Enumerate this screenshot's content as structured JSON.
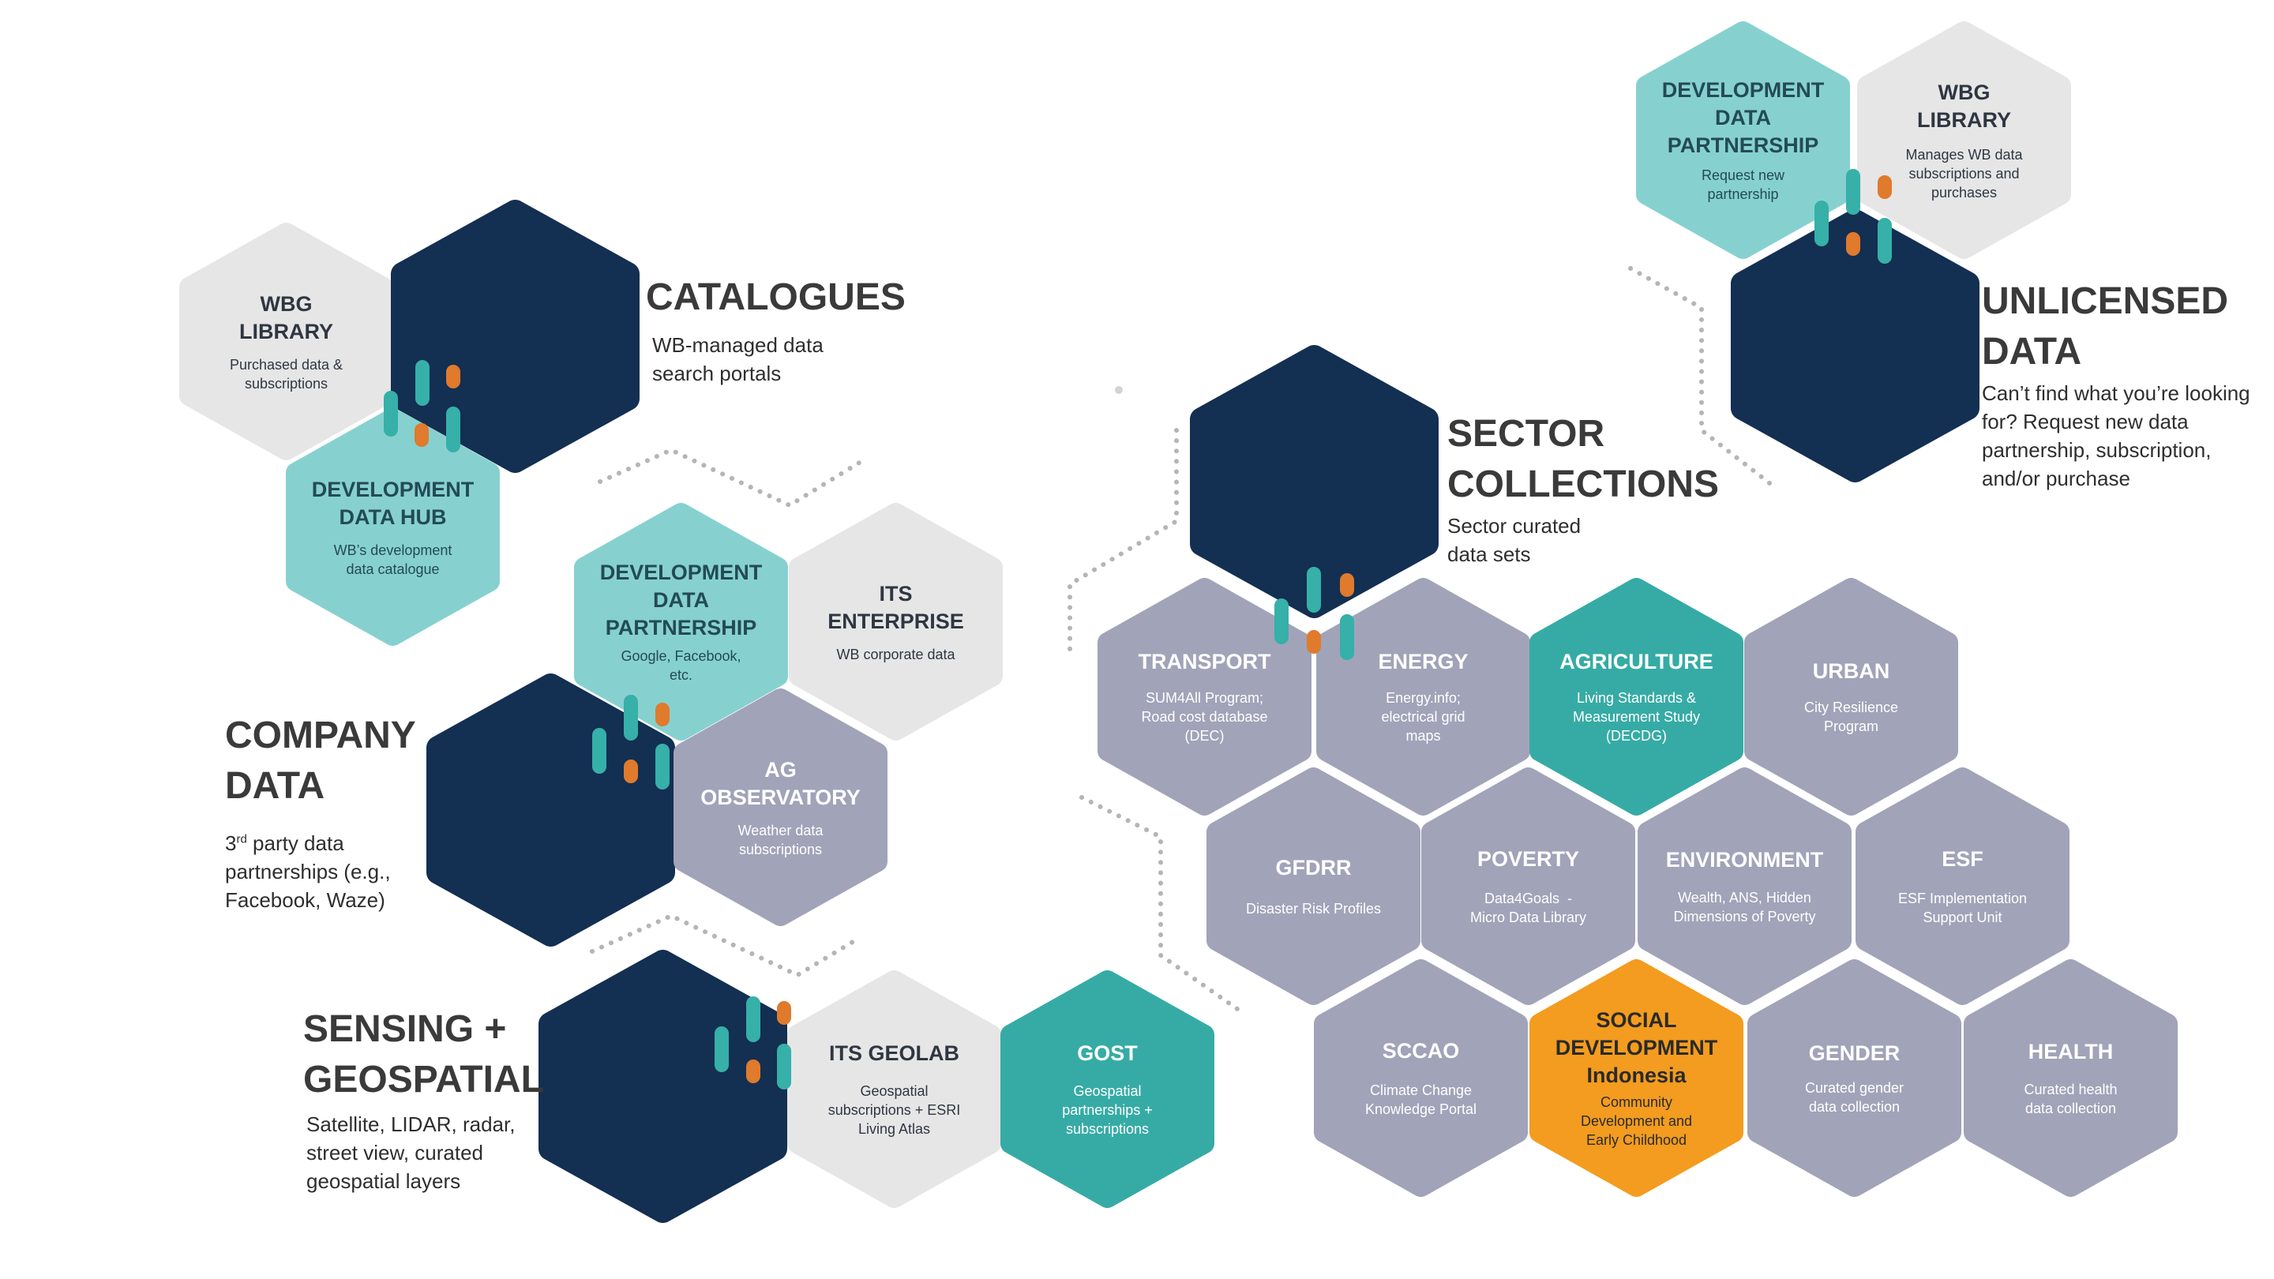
{
  "colors": {
    "navy": "#132f52",
    "grey": "#e6e6e6",
    "slate": "#a1a3b9",
    "teal": "#36aba5",
    "mint": "#86d1cf",
    "orange": "#f39c1f",
    "accent_teal": "#36b0a8",
    "accent_orange": "#e07a2c"
  },
  "sections": {
    "catalogues": {
      "title": "CATALOGUES",
      "subtitle_1": "WB-managed data",
      "subtitle_2": "search portals"
    },
    "unlicensed": {
      "title_1": "UNLICENSED",
      "title_2": "DATA",
      "subtitle_1": "Can’t find what you’re looking",
      "subtitle_2": "for? Request new data",
      "subtitle_3": "partnership, subscription,",
      "subtitle_4": "and/or purchase"
    },
    "sector": {
      "title_1": "SECTOR",
      "title_2": "COLLECTIONS",
      "subtitle_1": "Sector curated",
      "subtitle_2": "data sets"
    },
    "company": {
      "title_1": "COMPANY",
      "title_2": "DATA",
      "subtitle_num": "3",
      "subtitle_sup": "rd",
      "subtitle_1": " party data",
      "subtitle_2": "partnerships (e.g.,",
      "subtitle_3": "Facebook, Waze)"
    },
    "sensing": {
      "title_1": "SENSING +",
      "title_2": "GEOSPATIAL",
      "subtitle_1": "Satellite, LIDAR, radar,",
      "subtitle_2": "street view, curated",
      "subtitle_3": "geospatial layers"
    }
  },
  "hexes": {
    "wbg_library_cat": {
      "t1": "WBG LIBRARY",
      "d1": "Purchased data &",
      "d2": "subscriptions"
    },
    "dev_data_hub": {
      "t1": "DEVELOPMENT",
      "t2": "DATA HUB",
      "d1": "WB’s development",
      "d2": "data catalogue"
    },
    "ddp_company": {
      "t1": "DEVELOPMENT",
      "t2": "DATA",
      "t3": "PARTNERSHIP",
      "d1": "Google, Facebook,",
      "d2": "etc."
    },
    "its_enterprise": {
      "t1": "ITS",
      "t2": "ENTERPRISE",
      "d1": "WB corporate data"
    },
    "ag_observatory": {
      "t1": "AG",
      "t2": "OBSERVATORY",
      "d1": "Weather data",
      "d2": "subscriptions"
    },
    "its_geolab": {
      "t1": "ITS GEOLAB",
      "d1": "Geospatial",
      "d2": "subscriptions + ESRI",
      "d3": "Living Atlas"
    },
    "gost": {
      "t1": "GOST",
      "d1": "Geospatial",
      "d2": "partnerships +",
      "d3": "subscriptions"
    },
    "ddp_unlicensed": {
      "t1": "DEVELOPMENT",
      "t2": "DATA",
      "t3": "PARTNERSHIP",
      "d1": "Request new",
      "d2": "partnership"
    },
    "wbg_library_unl": {
      "t1": "WBG LIBRARY",
      "d1": "Manages WB data",
      "d2": "subscriptions and",
      "d3": "purchases"
    },
    "transport": {
      "t1": "TRANSPORT",
      "d1": "SUM4All Program;",
      "d2": "Road cost database",
      "d3": "(DEC)"
    },
    "energy": {
      "t1": "ENERGY",
      "d1": "Energy.info;",
      "d2": "electrical grid",
      "d3": "maps"
    },
    "agriculture": {
      "t1": "AGRICULTURE",
      "d1": "Living Standards &",
      "d2": "Measurement Study",
      "d3": "(DECDG)"
    },
    "urban": {
      "t1": "URBAN",
      "d1": "City Resilience",
      "d2": "Program"
    },
    "gfdrr": {
      "t1": "GFDRR",
      "d1": "Disaster Risk Profiles"
    },
    "poverty": {
      "t1": "POVERTY",
      "d1": "Data4Goals  -",
      "d2": "Micro Data Library"
    },
    "environment": {
      "t1": "ENVIRONMENT",
      "d1": "Wealth, ANS, Hidden",
      "d2": "Dimensions of Poverty"
    },
    "esf": {
      "t1": "ESF",
      "d1": "ESF Implementation",
      "d2": "Support Unit"
    },
    "sccao": {
      "t1": "SCCAO",
      "d1": "Climate Change",
      "d2": "Knowledge Portal"
    },
    "social_dev": {
      "t1": "SOCIAL",
      "t2": "DEVELOPMENT",
      "t3": "Indonesia",
      "d1": "Community",
      "d2": "Development and",
      "d3": "Early Childhood"
    },
    "gender": {
      "t1": "GENDER",
      "d1": "Curated gender",
      "d2": "data collection"
    },
    "health": {
      "t1": "HEALTH",
      "d1": "Curated health",
      "d2": "data collection"
    }
  }
}
